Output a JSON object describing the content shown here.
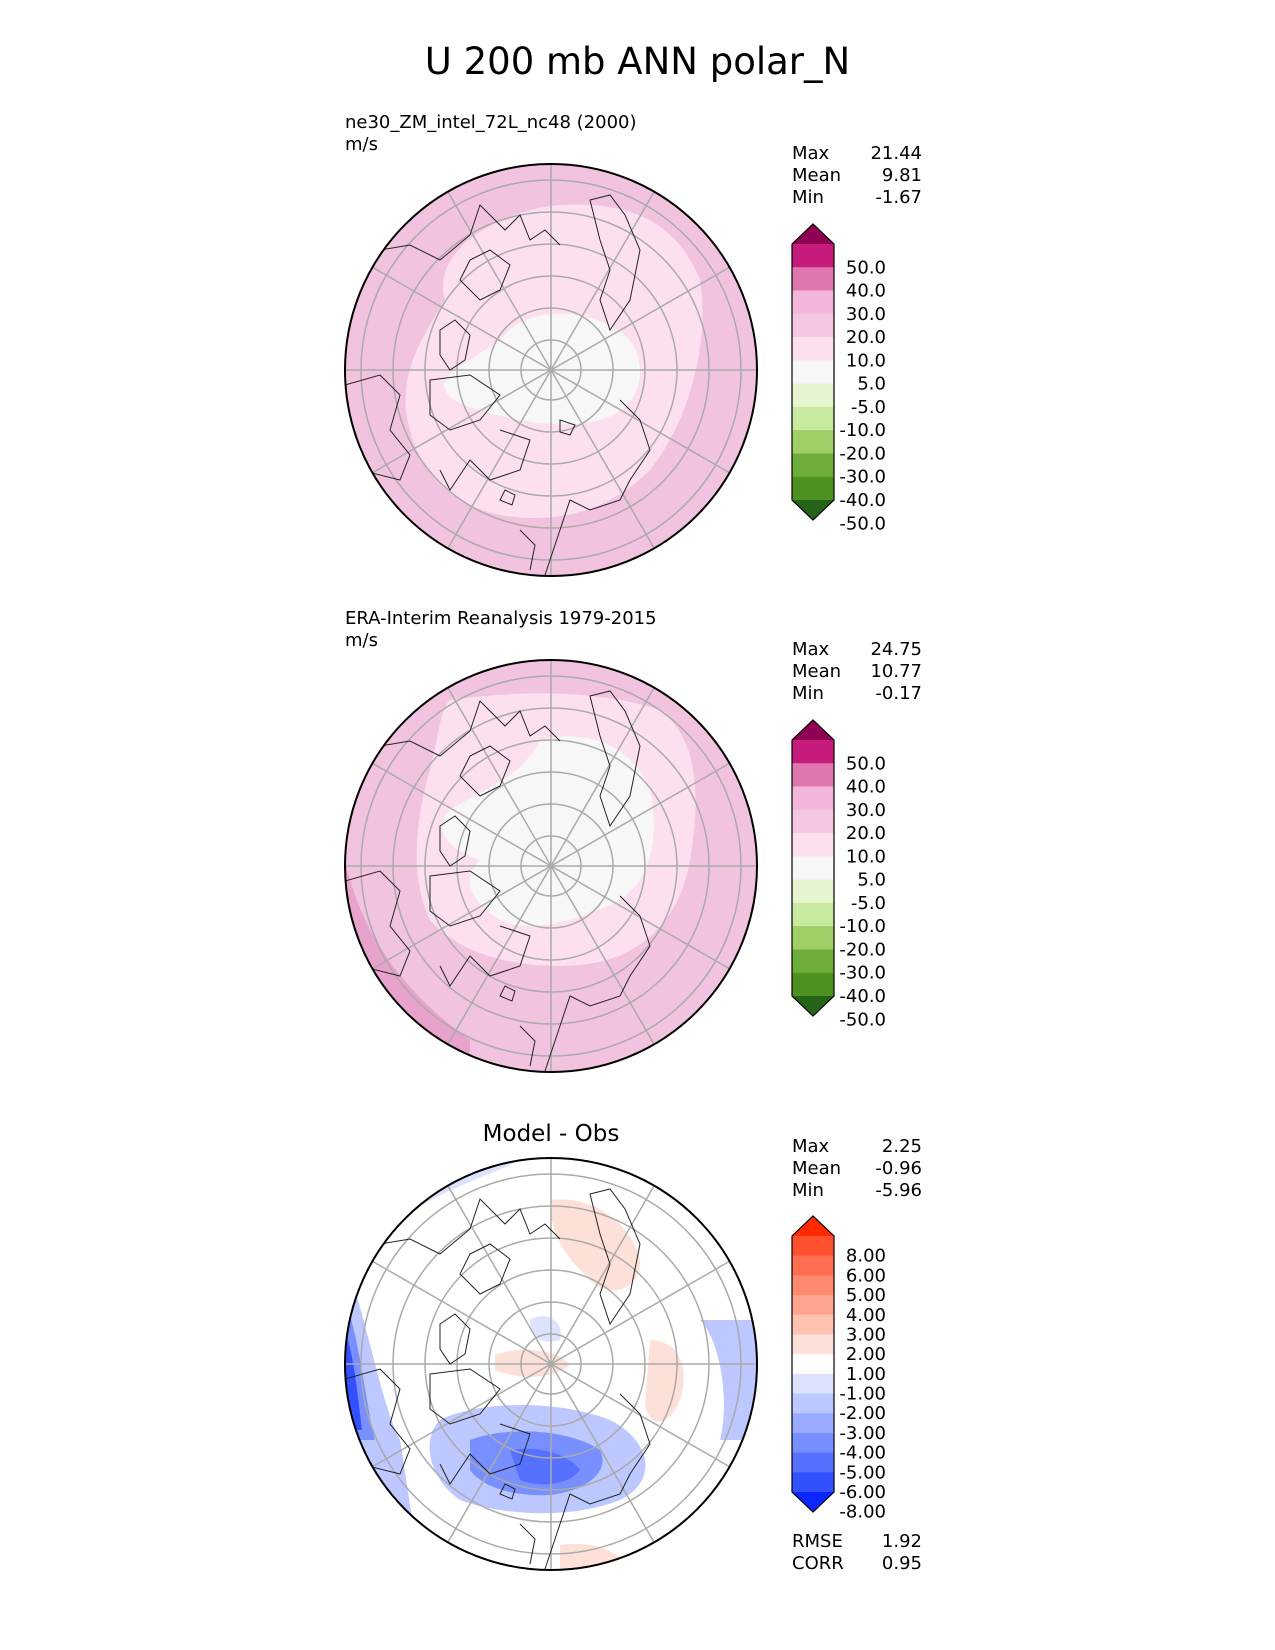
{
  "title": "U 200 mb ANN polar_N",
  "panels": [
    {
      "name": "test",
      "title": "ne30_ZM_intel_72L_nc48 (2000)",
      "units": "m/s",
      "stats": [
        {
          "label": "Max",
          "value": "21.44"
        },
        {
          "label": "Mean",
          "value": "9.81"
        },
        {
          "label": "Min",
          "value": "-1.67"
        }
      ]
    },
    {
      "name": "reference",
      "title": "ERA-Interim Reanalysis 1979-2015",
      "units": "m/s",
      "stats": [
        {
          "label": "Max",
          "value": "24.75"
        },
        {
          "label": "Mean",
          "value": "10.77"
        },
        {
          "label": "Min",
          "value": "-0.17"
        }
      ]
    },
    {
      "name": "diff",
      "title": "Model - Obs",
      "stats": [
        {
          "label": "Max",
          "value": "2.25"
        },
        {
          "label": "Mean",
          "value": "-0.96"
        },
        {
          "label": "Min",
          "value": "-5.96"
        }
      ],
      "metrics": [
        {
          "label": "RMSE",
          "value": "1.92"
        },
        {
          "label": "CORR",
          "value": "0.95"
        }
      ]
    }
  ],
  "chart_data": [
    {
      "type": "heatmap",
      "projection": "polar stereographic (north)",
      "variable": "U 200 mb",
      "season": "ANN",
      "units": "m/s",
      "colorbar": {
        "levels": [
          "50.0",
          "40.0",
          "30.0",
          "20.0",
          "10.0",
          "5.0",
          "-5.0",
          "-10.0",
          "-20.0",
          "-30.0",
          "-40.0",
          "-50.0"
        ],
        "colors": [
          "#8e0152",
          "#c51b7d",
          "#de77ae",
          "#f1b6da",
          "#f5c6e2",
          "#fde0ef",
          "#f7f7f7",
          "#e6f5d0",
          "#c7e9a0",
          "#9fd068",
          "#6fad3a",
          "#4d9221",
          "#276419"
        ]
      }
    },
    {
      "type": "heatmap",
      "projection": "polar stereographic (north)",
      "variable": "U 200 mb",
      "season": "ANN",
      "units": "m/s",
      "colorbar": {
        "levels": [
          "50.0",
          "40.0",
          "30.0",
          "20.0",
          "10.0",
          "5.0",
          "-5.0",
          "-10.0",
          "-20.0",
          "-30.0",
          "-40.0",
          "-50.0"
        ],
        "colors": [
          "#8e0152",
          "#c51b7d",
          "#de77ae",
          "#f1b6da",
          "#f5c6e2",
          "#fde0ef",
          "#f7f7f7",
          "#e6f5d0",
          "#c7e9a0",
          "#9fd068",
          "#6fad3a",
          "#4d9221",
          "#276419"
        ]
      }
    },
    {
      "type": "heatmap",
      "projection": "polar stereographic (north)",
      "variable": "U 200 mb difference",
      "season": "ANN",
      "colorbar": {
        "levels": [
          "8.00",
          "6.00",
          "5.00",
          "4.00",
          "3.00",
          "2.00",
          "1.00",
          "-1.00",
          "-2.00",
          "-3.00",
          "-4.00",
          "-5.00",
          "-6.00",
          "-8.00"
        ],
        "colors": [
          "#ff2a00",
          "#ff5030",
          "#ff6e50",
          "#ff8a70",
          "#ffa590",
          "#ffc2b0",
          "#fde0d8",
          "#ffffff",
          "#dde3ff",
          "#bcc8ff",
          "#9aabff",
          "#7890ff",
          "#5670ff",
          "#3350ff",
          "#0a28ff"
        ]
      }
    }
  ]
}
